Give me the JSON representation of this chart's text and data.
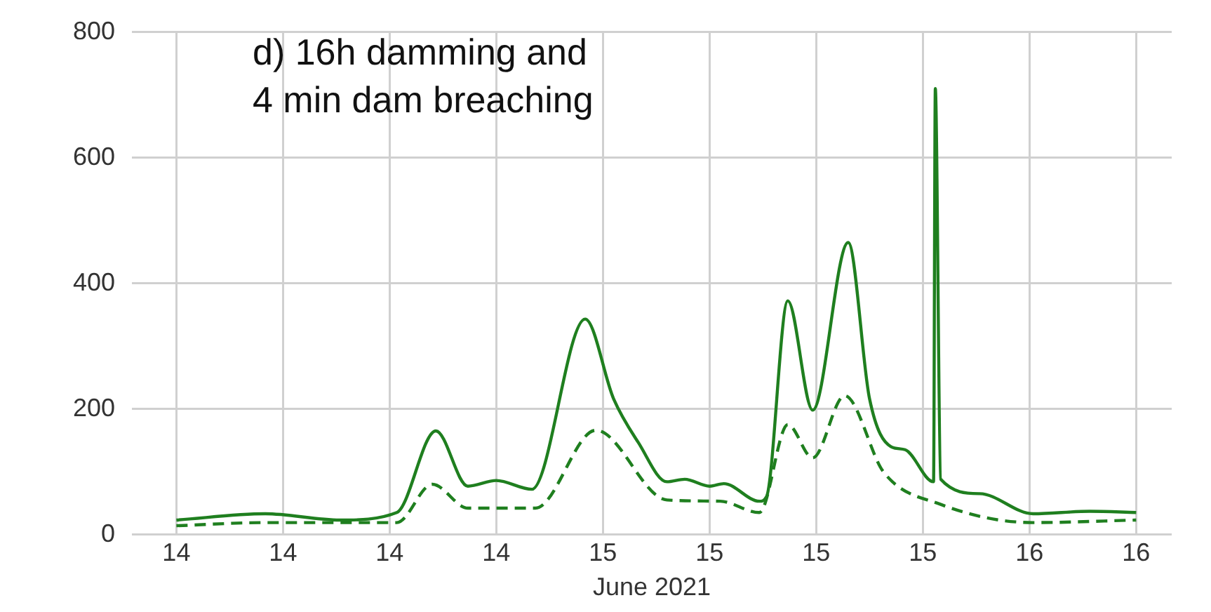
{
  "chart_data": {
    "type": "line",
    "title": "d) 16h damming and 4 min dam breaching",
    "xlabel": "June 2021",
    "xlim": [
      "2021-06-13T21:30",
      "2021-06-16T08:00"
    ],
    "xticks": [
      {
        "value": "2021-06-14T00:00",
        "label": "14"
      },
      {
        "value": "2021-06-14T06:00",
        "label": "14"
      },
      {
        "value": "2021-06-14T12:00",
        "label": "14"
      },
      {
        "value": "2021-06-14T18:00",
        "label": "14"
      },
      {
        "value": "2021-06-15T00:00",
        "label": "15"
      },
      {
        "value": "2021-06-15T06:00",
        "label": "15"
      },
      {
        "value": "2021-06-15T12:00",
        "label": "15"
      },
      {
        "value": "2021-06-15T18:00",
        "label": "15"
      },
      {
        "value": "2021-06-16T00:00",
        "label": "16"
      },
      {
        "value": "2021-06-16T06:00",
        "label": "16"
      }
    ],
    "ylim": [
      0,
      800
    ],
    "yticks": [
      0,
      200,
      400,
      600,
      800
    ],
    "grid": true,
    "legend": false,
    "marker": "none",
    "series": [
      {
        "color": "#1f7f1f",
        "line_style": "solid",
        "x": [
          "2021-06-14T00:00",
          "2021-06-14T05:00",
          "2021-06-14T09:12",
          "2021-06-14T12:24",
          "2021-06-14T14:36",
          "2021-06-14T16:24",
          "2021-06-14T18:00",
          "2021-06-14T20:00",
          "2021-06-14T23:00",
          "2021-06-15T00:36",
          "2021-06-15T02:00",
          "2021-06-15T03:36",
          "2021-06-15T04:36",
          "2021-06-15T06:00",
          "2021-06-15T06:48",
          "2021-06-15T08:48",
          "2021-06-15T09:12",
          "2021-06-15T10:24",
          "2021-06-15T11:48",
          "2021-06-15T13:48",
          "2021-06-15T15:00",
          "2021-06-15T16:12",
          "2021-06-15T17:00",
          "2021-06-15T18:36",
          "2021-06-15T18:42",
          "2021-06-15T19:00",
          "2021-06-15T21:12",
          "2021-06-16T00:12",
          "2021-06-16T03:24",
          "2021-06-16T06:00"
        ],
        "values": [
          23,
          33,
          23,
          35,
          165,
          77,
          86,
          72,
          343,
          216,
          146,
          84,
          88,
          77,
          81,
          53,
          60,
          372,
          198,
          465,
          216,
          140,
          135,
          84,
          710,
          88,
          65,
          33,
          37,
          35
        ]
      },
      {
        "color": "#1f7f1f",
        "line_style": "dashed",
        "x": [
          "2021-06-14T00:00",
          "2021-06-14T05:00",
          "2021-06-14T12:24",
          "2021-06-14T14:24",
          "2021-06-14T16:24",
          "2021-06-14T20:12",
          "2021-06-14T23:36",
          "2021-06-15T03:36",
          "2021-06-15T06:36",
          "2021-06-15T08:48",
          "2021-06-15T10:24",
          "2021-06-15T11:48",
          "2021-06-15T13:36",
          "2021-06-15T15:48",
          "2021-06-15T19:00",
          "2021-06-16T00:12",
          "2021-06-16T06:00"
        ],
        "values": [
          14,
          19,
          19,
          80,
          42,
          42,
          166,
          55,
          53,
          35,
          175,
          122,
          221,
          99,
          48,
          19,
          23
        ]
      }
    ]
  }
}
